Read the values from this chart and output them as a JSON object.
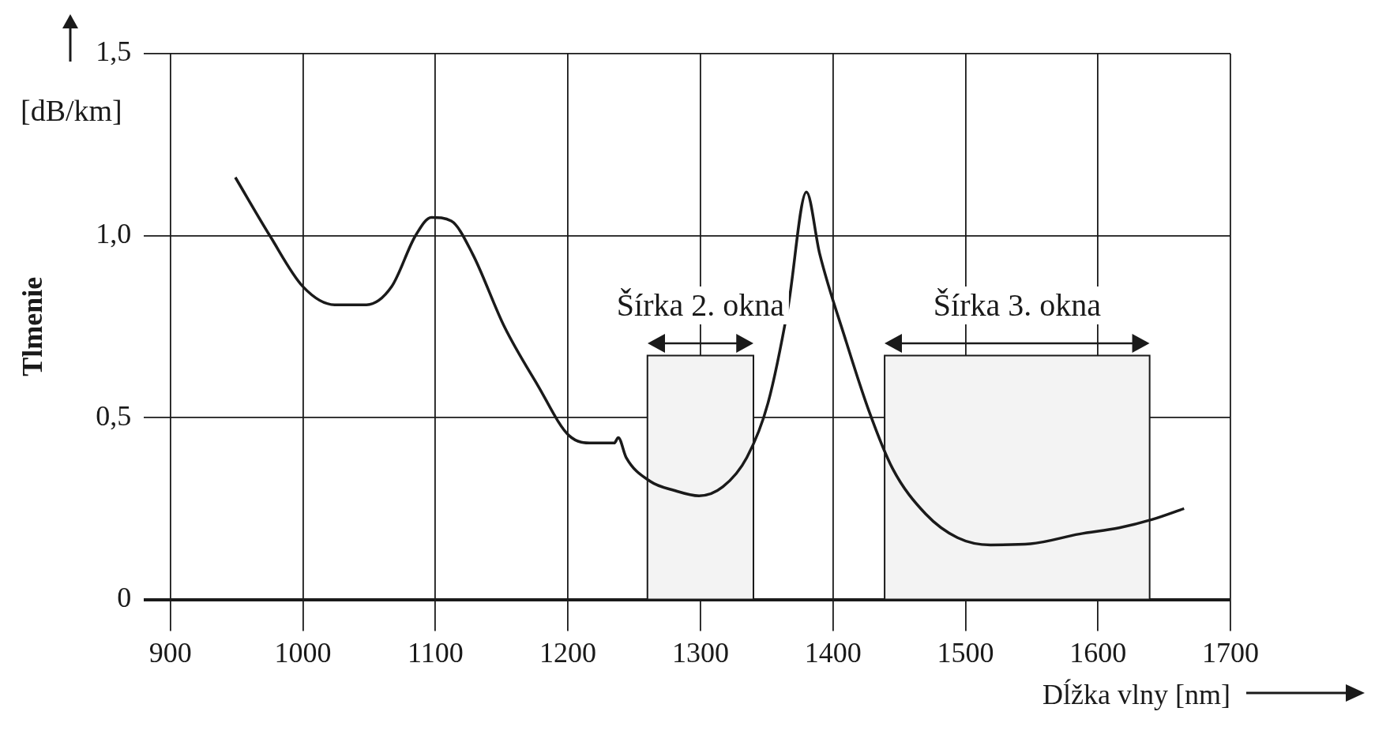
{
  "chart_data": {
    "type": "line",
    "xlabel": "Dĺžka vlny [nm]",
    "ylabel": "Tlmenie",
    "annotations": [
      "[dB/km]"
    ],
    "x": [
      949,
      975,
      1000,
      1024,
      1048,
      1067,
      1085,
      1097,
      1112,
      1128,
      1152,
      1177,
      1201,
      1219,
      1235,
      1238,
      1244,
      1262,
      1280,
      1299,
      1317,
      1335,
      1351,
      1366,
      1380,
      1390,
      1409,
      1427,
      1445,
      1470,
      1494,
      1519,
      1549,
      1586,
      1616,
      1641,
      1665
    ],
    "series": [
      {
        "color": "#1a1a1a",
        "values": [
          1.16,
          1.0,
          0.86,
          0.81,
          0.81,
          0.86,
          1.0,
          1.05,
          1.04,
          0.95,
          0.75,
          0.59,
          0.45,
          0.43,
          0.43,
          0.445,
          0.39,
          0.325,
          0.3,
          0.285,
          0.31,
          0.39,
          0.54,
          0.8,
          1.12,
          0.95,
          0.72,
          0.52,
          0.36,
          0.235,
          0.17,
          0.15,
          0.153,
          0.18,
          0.197,
          0.22,
          0.25
        ]
      }
    ],
    "xlim": [
      880,
      1700
    ],
    "xticks": [
      900,
      1000,
      1100,
      1200,
      1300,
      1400,
      1500,
      1600,
      1700
    ],
    "ylim": [
      0,
      1.5
    ],
    "yticks": [
      0,
      {
        "value": 0.5,
        "label": "0,5"
      },
      {
        "value": 1.0,
        "label": "1,0"
      },
      {
        "value": 1.5,
        "label": "1,5"
      }
    ],
    "bands": [
      {
        "axis": "x",
        "from": 1260,
        "to": 1340,
        "label": "Šírka 2. okna",
        "color": "#f3f3f3"
      },
      {
        "axis": "x",
        "from": 1439,
        "to": 1639,
        "label": "Šírka 3. okna",
        "color": "#f3f3f3"
      }
    ],
    "grid": true
  }
}
